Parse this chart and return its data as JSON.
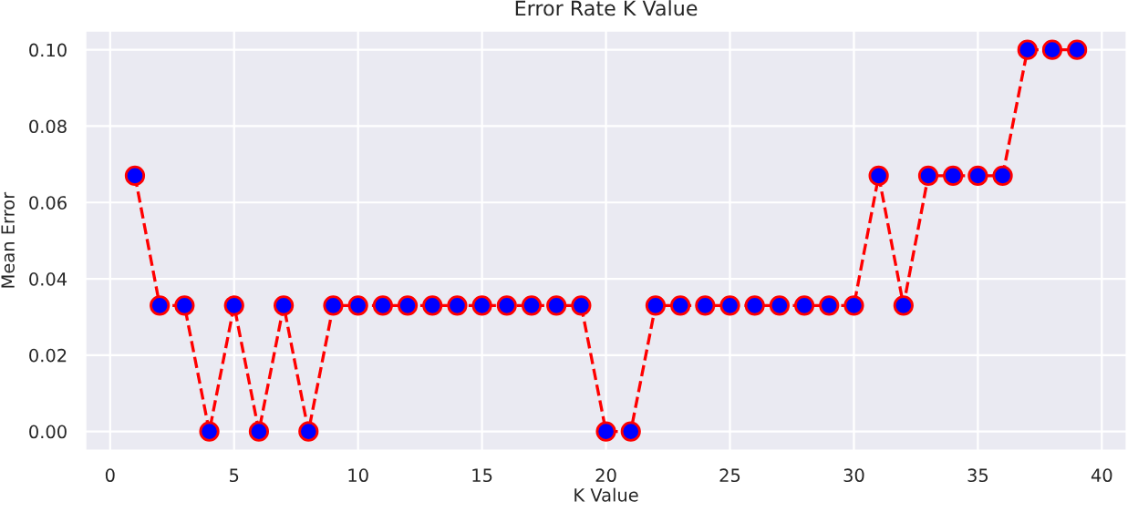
{
  "chart_data": {
    "type": "line",
    "title": "Error Rate K Value",
    "xlabel": "K Value",
    "ylabel": "Mean Error",
    "x": [
      1,
      2,
      3,
      4,
      5,
      6,
      7,
      8,
      9,
      10,
      11,
      12,
      13,
      14,
      15,
      16,
      17,
      18,
      19,
      20,
      21,
      22,
      23,
      24,
      25,
      26,
      27,
      28,
      29,
      30,
      31,
      32,
      33,
      34,
      35,
      36,
      37,
      38,
      39
    ],
    "series": [
      {
        "color": "#ff0000",
        "values": [
          0.067,
          0.033,
          0.033,
          0,
          0.033,
          0,
          0.033,
          0,
          0.033,
          0.033,
          0.033,
          0.033,
          0.033,
          0.033,
          0.033,
          0.033,
          0.033,
          0.033,
          0.033,
          0,
          0,
          0.033,
          0.033,
          0.033,
          0.033,
          0.033,
          0.033,
          0.033,
          0.033,
          0.033,
          0.067,
          0.033,
          0.067,
          0.067,
          0.067,
          0.067,
          0.1,
          0.1,
          0.1
        ]
      }
    ],
    "xlim": [
      -1,
      41
    ],
    "ylim": [
      -0.005,
      0.105
    ],
    "xticks": [
      0,
      10,
      20,
      30,
      40,
      5,
      15,
      25,
      35
    ],
    "yticks": [
      {
        "value": 0,
        "label": "0.00"
      },
      {
        "value": 0.02,
        "label": "0.02"
      },
      {
        "value": 0.04,
        "label": "0.04"
      },
      {
        "value": 0.06,
        "label": "0.06"
      },
      {
        "value": 0.08,
        "label": "0.08"
      },
      {
        "value": 0.1,
        "label": "0.10"
      }
    ],
    "grid": true,
    "marker": "circle",
    "line_style": "dashed"
  }
}
